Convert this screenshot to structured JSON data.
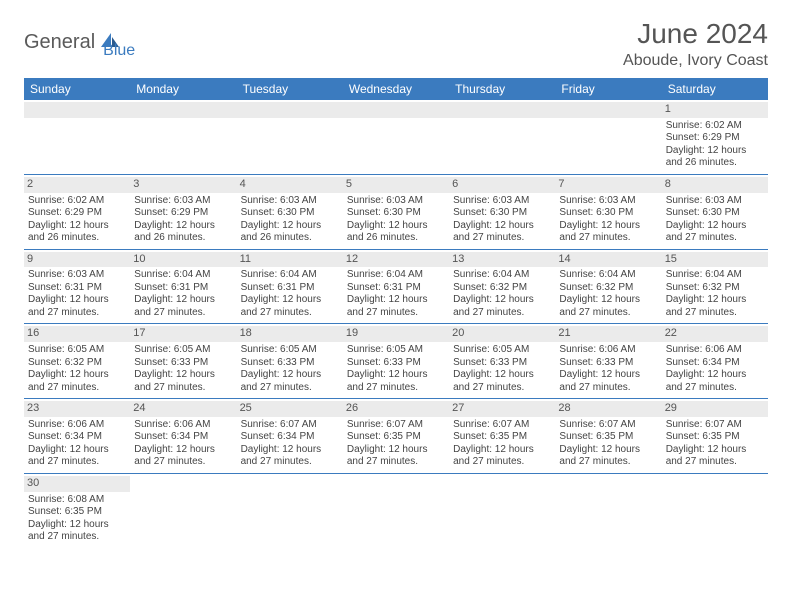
{
  "logo": {
    "part1": "General",
    "part2": "Blue"
  },
  "title": "June 2024",
  "location": "Aboude, Ivory Coast",
  "colors": {
    "header_bg": "#3b7bbf",
    "header_text": "#ffffff",
    "daynum_bg": "#ebebeb",
    "text": "#444444",
    "logo_gray": "#5a5a5a",
    "logo_blue": "#3b7bbf"
  },
  "day_headers": [
    "Sunday",
    "Monday",
    "Tuesday",
    "Wednesday",
    "Thursday",
    "Friday",
    "Saturday"
  ],
  "weeks": [
    [
      null,
      null,
      null,
      null,
      null,
      null,
      {
        "n": "1",
        "sr": "Sunrise: 6:02 AM",
        "ss": "Sunset: 6:29 PM",
        "d1": "Daylight: 12 hours",
        "d2": "and 26 minutes."
      }
    ],
    [
      {
        "n": "2",
        "sr": "Sunrise: 6:02 AM",
        "ss": "Sunset: 6:29 PM",
        "d1": "Daylight: 12 hours",
        "d2": "and 26 minutes."
      },
      {
        "n": "3",
        "sr": "Sunrise: 6:03 AM",
        "ss": "Sunset: 6:29 PM",
        "d1": "Daylight: 12 hours",
        "d2": "and 26 minutes."
      },
      {
        "n": "4",
        "sr": "Sunrise: 6:03 AM",
        "ss": "Sunset: 6:30 PM",
        "d1": "Daylight: 12 hours",
        "d2": "and 26 minutes."
      },
      {
        "n": "5",
        "sr": "Sunrise: 6:03 AM",
        "ss": "Sunset: 6:30 PM",
        "d1": "Daylight: 12 hours",
        "d2": "and 26 minutes."
      },
      {
        "n": "6",
        "sr": "Sunrise: 6:03 AM",
        "ss": "Sunset: 6:30 PM",
        "d1": "Daylight: 12 hours",
        "d2": "and 27 minutes."
      },
      {
        "n": "7",
        "sr": "Sunrise: 6:03 AM",
        "ss": "Sunset: 6:30 PM",
        "d1": "Daylight: 12 hours",
        "d2": "and 27 minutes."
      },
      {
        "n": "8",
        "sr": "Sunrise: 6:03 AM",
        "ss": "Sunset: 6:30 PM",
        "d1": "Daylight: 12 hours",
        "d2": "and 27 minutes."
      }
    ],
    [
      {
        "n": "9",
        "sr": "Sunrise: 6:03 AM",
        "ss": "Sunset: 6:31 PM",
        "d1": "Daylight: 12 hours",
        "d2": "and 27 minutes."
      },
      {
        "n": "10",
        "sr": "Sunrise: 6:04 AM",
        "ss": "Sunset: 6:31 PM",
        "d1": "Daylight: 12 hours",
        "d2": "and 27 minutes."
      },
      {
        "n": "11",
        "sr": "Sunrise: 6:04 AM",
        "ss": "Sunset: 6:31 PM",
        "d1": "Daylight: 12 hours",
        "d2": "and 27 minutes."
      },
      {
        "n": "12",
        "sr": "Sunrise: 6:04 AM",
        "ss": "Sunset: 6:31 PM",
        "d1": "Daylight: 12 hours",
        "d2": "and 27 minutes."
      },
      {
        "n": "13",
        "sr": "Sunrise: 6:04 AM",
        "ss": "Sunset: 6:32 PM",
        "d1": "Daylight: 12 hours",
        "d2": "and 27 minutes."
      },
      {
        "n": "14",
        "sr": "Sunrise: 6:04 AM",
        "ss": "Sunset: 6:32 PM",
        "d1": "Daylight: 12 hours",
        "d2": "and 27 minutes."
      },
      {
        "n": "15",
        "sr": "Sunrise: 6:04 AM",
        "ss": "Sunset: 6:32 PM",
        "d1": "Daylight: 12 hours",
        "d2": "and 27 minutes."
      }
    ],
    [
      {
        "n": "16",
        "sr": "Sunrise: 6:05 AM",
        "ss": "Sunset: 6:32 PM",
        "d1": "Daylight: 12 hours",
        "d2": "and 27 minutes."
      },
      {
        "n": "17",
        "sr": "Sunrise: 6:05 AM",
        "ss": "Sunset: 6:33 PM",
        "d1": "Daylight: 12 hours",
        "d2": "and 27 minutes."
      },
      {
        "n": "18",
        "sr": "Sunrise: 6:05 AM",
        "ss": "Sunset: 6:33 PM",
        "d1": "Daylight: 12 hours",
        "d2": "and 27 minutes."
      },
      {
        "n": "19",
        "sr": "Sunrise: 6:05 AM",
        "ss": "Sunset: 6:33 PM",
        "d1": "Daylight: 12 hours",
        "d2": "and 27 minutes."
      },
      {
        "n": "20",
        "sr": "Sunrise: 6:05 AM",
        "ss": "Sunset: 6:33 PM",
        "d1": "Daylight: 12 hours",
        "d2": "and 27 minutes."
      },
      {
        "n": "21",
        "sr": "Sunrise: 6:06 AM",
        "ss": "Sunset: 6:33 PM",
        "d1": "Daylight: 12 hours",
        "d2": "and 27 minutes."
      },
      {
        "n": "22",
        "sr": "Sunrise: 6:06 AM",
        "ss": "Sunset: 6:34 PM",
        "d1": "Daylight: 12 hours",
        "d2": "and 27 minutes."
      }
    ],
    [
      {
        "n": "23",
        "sr": "Sunrise: 6:06 AM",
        "ss": "Sunset: 6:34 PM",
        "d1": "Daylight: 12 hours",
        "d2": "and 27 minutes."
      },
      {
        "n": "24",
        "sr": "Sunrise: 6:06 AM",
        "ss": "Sunset: 6:34 PM",
        "d1": "Daylight: 12 hours",
        "d2": "and 27 minutes."
      },
      {
        "n": "25",
        "sr": "Sunrise: 6:07 AM",
        "ss": "Sunset: 6:34 PM",
        "d1": "Daylight: 12 hours",
        "d2": "and 27 minutes."
      },
      {
        "n": "26",
        "sr": "Sunrise: 6:07 AM",
        "ss": "Sunset: 6:35 PM",
        "d1": "Daylight: 12 hours",
        "d2": "and 27 minutes."
      },
      {
        "n": "27",
        "sr": "Sunrise: 6:07 AM",
        "ss": "Sunset: 6:35 PM",
        "d1": "Daylight: 12 hours",
        "d2": "and 27 minutes."
      },
      {
        "n": "28",
        "sr": "Sunrise: 6:07 AM",
        "ss": "Sunset: 6:35 PM",
        "d1": "Daylight: 12 hours",
        "d2": "and 27 minutes."
      },
      {
        "n": "29",
        "sr": "Sunrise: 6:07 AM",
        "ss": "Sunset: 6:35 PM",
        "d1": "Daylight: 12 hours",
        "d2": "and 27 minutes."
      }
    ],
    [
      {
        "n": "30",
        "sr": "Sunrise: 6:08 AM",
        "ss": "Sunset: 6:35 PM",
        "d1": "Daylight: 12 hours",
        "d2": "and 27 minutes."
      },
      null,
      null,
      null,
      null,
      null,
      null
    ]
  ]
}
